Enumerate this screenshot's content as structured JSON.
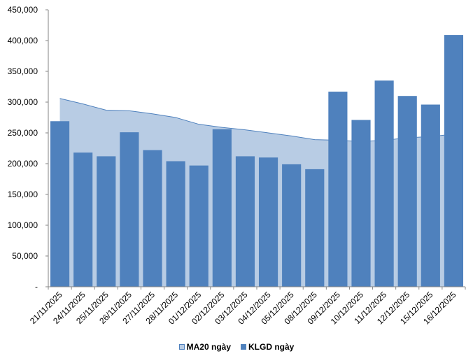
{
  "chart_data": {
    "type": "bar",
    "categories": [
      "21/11/2025",
      "24/11/2025",
      "25/11/2025",
      "26/11/2025",
      "27/11/2025",
      "28/11/2025",
      "01/12/2025",
      "02/12/2025",
      "03/12/2025",
      "04/12/2025",
      "05/12/2025",
      "08/12/2025",
      "09/12/2025",
      "10/12/2025",
      "11/12/2025",
      "12/12/2025",
      "15/12/2025",
      "16/12/2025"
    ],
    "series": [
      {
        "name": "MA20 ngày",
        "kind": "area",
        "color": "#b8cce4",
        "line_color": "#4f81bd",
        "values": [
          306000,
          297000,
          287000,
          286000,
          281000,
          275000,
          264000,
          259000,
          255000,
          250000,
          245000,
          239000,
          238000,
          236000,
          238000,
          242000,
          244000,
          248000
        ]
      },
      {
        "name": "KLGD ngày",
        "kind": "bar",
        "color": "#4f81bd",
        "values": [
          269000,
          218000,
          212000,
          251000,
          222000,
          204000,
          197000,
          256000,
          212000,
          210000,
          199000,
          191000,
          317000,
          271000,
          335000,
          310000,
          296000,
          409000
        ]
      }
    ],
    "yticks": [
      "-",
      "50,000",
      "100,000",
      "150,000",
      "200,000",
      "250,000",
      "300,000",
      "350,000",
      "400,000",
      "450,000"
    ],
    "ylim": [
      0,
      450000
    ],
    "title": "",
    "xlabel": "",
    "ylabel": "",
    "grid": false,
    "legend_position": "bottom"
  }
}
